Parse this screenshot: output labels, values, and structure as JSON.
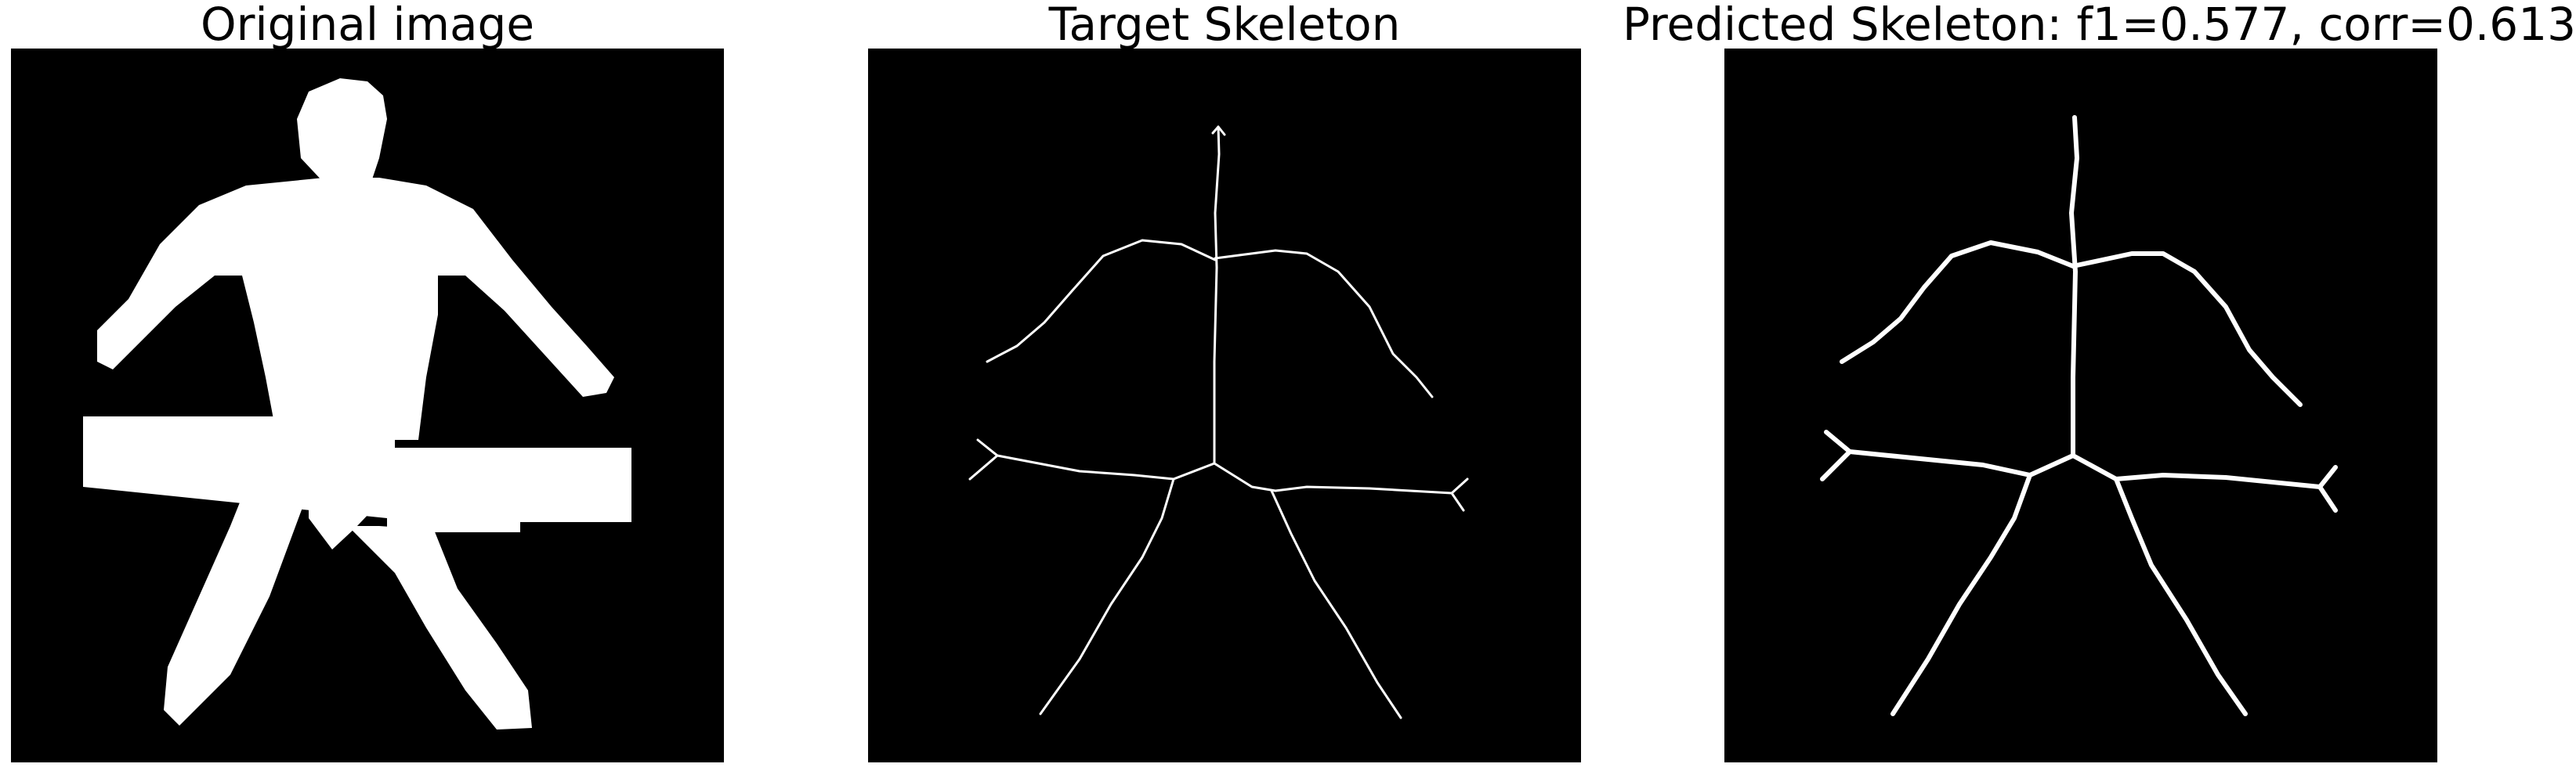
{
  "panels": [
    {
      "title": "Original image"
    },
    {
      "title": "Target Skeleton"
    },
    {
      "title": "Predicted Skeleton: f1=0.577, corr=0.613"
    }
  ],
  "colors": {
    "background": "#000000",
    "foreground": "#ffffff",
    "page": "#ffffff"
  }
}
